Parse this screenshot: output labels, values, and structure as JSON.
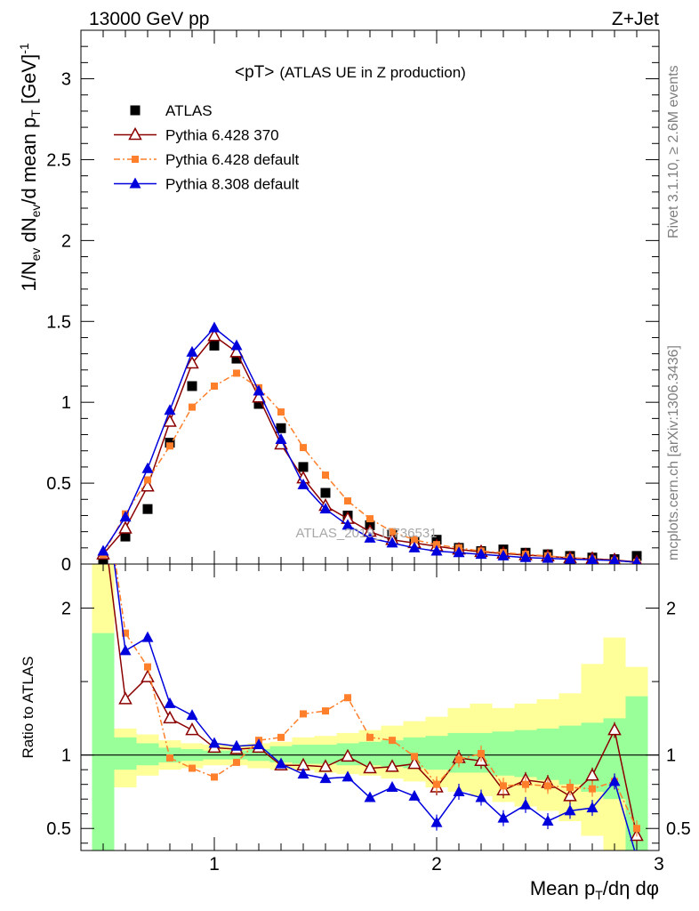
{
  "header": {
    "left": "13000 GeV pp",
    "right": "Z+Jet"
  },
  "side_labels": {
    "rivet": "Rivet 3.1.10, ≥ 2.6M events",
    "mcplots": "mcplots.cern.ch [arXiv:1306.3436]"
  },
  "watermark": "ATLAS_2019_I1736531",
  "colors": {
    "atlas": "#000000",
    "p6_370": "#8b0000",
    "p6_default": "#ff7f2a",
    "p8_default": "#0000dd",
    "band_inner": "#99ff99",
    "band_outer": "#ffff99"
  },
  "chart_data": [
    {
      "type": "line",
      "title_main": "<pT>",
      "title_sub": "(ATLAS UE in Z production)",
      "ylabel": "1/N_ev dN_ev/d mean p_T [GeV]^-1",
      "xlim": [
        0.4,
        3.0
      ],
      "ylim": [
        0,
        3.3
      ],
      "yticks": [
        "0",
        "0.5",
        "1",
        "1.5",
        "2",
        "2.5",
        "3"
      ],
      "x": [
        0.5,
        0.6,
        0.7,
        0.8,
        0.9,
        1.0,
        1.1,
        1.2,
        1.3,
        1.4,
        1.5,
        1.6,
        1.7,
        1.8,
        1.9,
        2.0,
        2.1,
        2.2,
        2.3,
        2.4,
        2.5,
        2.6,
        2.7,
        2.8,
        2.9
      ],
      "series": [
        {
          "name": "ATLAS",
          "style": "data",
          "values": [
            0.02,
            0.17,
            0.34,
            0.75,
            1.1,
            1.35,
            1.27,
            0.99,
            0.84,
            0.6,
            0.44,
            0.3,
            0.24,
            0.18,
            0.14,
            0.15,
            0.1,
            0.08,
            0.09,
            0.07,
            0.06,
            0.05,
            0.04,
            0.03,
            0.05
          ]
        },
        {
          "name": "Pythia 6.428 370",
          "style": "p6_370",
          "values": [
            0.06,
            0.22,
            0.48,
            0.88,
            1.24,
            1.41,
            1.31,
            1.03,
            0.74,
            0.53,
            0.36,
            0.28,
            0.2,
            0.15,
            0.13,
            0.11,
            0.09,
            0.075,
            0.065,
            0.055,
            0.048,
            0.037,
            0.033,
            0.025,
            0.013
          ]
        },
        {
          "name": "Pythia 6.428 default",
          "style": "p6_default",
          "values": [
            0.06,
            0.31,
            0.52,
            0.73,
            0.97,
            1.1,
            1.18,
            1.09,
            0.94,
            0.72,
            0.55,
            0.39,
            0.28,
            0.2,
            0.15,
            0.12,
            0.1,
            0.08,
            0.07,
            0.06,
            0.05,
            0.04,
            0.03,
            0.02,
            0.01
          ]
        },
        {
          "name": "Pythia 8.308 default",
          "style": "p8_default",
          "values": [
            0.08,
            0.29,
            0.59,
            0.95,
            1.31,
            1.46,
            1.35,
            1.07,
            0.77,
            0.49,
            0.34,
            0.24,
            0.16,
            0.13,
            0.1,
            0.08,
            0.07,
            0.06,
            0.05,
            0.04,
            0.035,
            0.03,
            0.026,
            0.022,
            0.01
          ]
        }
      ]
    },
    {
      "type": "line",
      "ylabel": "Ratio to ATLAS",
      "xlabel": "Mean p_T/dη dφ",
      "xlim": [
        0.4,
        3.0
      ],
      "ylim": [
        0.35,
        2.3
      ],
      "yticks": [
        "0.5",
        "1",
        "2"
      ],
      "xticks": [
        "1",
        "2",
        "3"
      ],
      "reference": 1.0,
      "band_x_edges": [
        0.45,
        0.55,
        0.65,
        0.75,
        0.85,
        0.95,
        1.05,
        1.15,
        1.25,
        1.35,
        1.45,
        1.55,
        1.65,
        1.75,
        1.85,
        1.95,
        2.05,
        2.15,
        2.25,
        2.35,
        2.45,
        2.55,
        2.65,
        2.75,
        2.85,
        2.95
      ],
      "band_inner": [
        [
          0.35,
          1.83
        ],
        [
          0.9,
          1.12
        ],
        [
          0.93,
          1.08
        ],
        [
          0.95,
          1.05
        ],
        [
          0.96,
          1.04
        ],
        [
          0.97,
          1.03
        ],
        [
          0.97,
          1.03
        ],
        [
          0.96,
          1.04
        ],
        [
          0.95,
          1.06
        ],
        [
          0.94,
          1.07
        ],
        [
          0.94,
          1.07
        ],
        [
          0.93,
          1.08
        ],
        [
          0.93,
          1.09
        ],
        [
          0.92,
          1.1
        ],
        [
          0.91,
          1.12
        ],
        [
          0.9,
          1.13
        ],
        [
          0.88,
          1.15
        ],
        [
          0.88,
          1.15
        ],
        [
          0.86,
          1.16
        ],
        [
          0.85,
          1.17
        ],
        [
          0.83,
          1.18
        ],
        [
          0.8,
          1.2
        ],
        [
          0.75,
          1.22
        ],
        [
          0.7,
          1.25
        ],
        [
          0.35,
          1.4
        ]
      ],
      "band_outer": [
        [
          0.35,
          2.3
        ],
        [
          0.78,
          1.18
        ],
        [
          0.86,
          1.14
        ],
        [
          0.9,
          1.1
        ],
        [
          0.91,
          1.08
        ],
        [
          0.93,
          1.07
        ],
        [
          0.93,
          1.07
        ],
        [
          0.91,
          1.08
        ],
        [
          0.9,
          1.09
        ],
        [
          0.9,
          1.12
        ],
        [
          0.88,
          1.13
        ],
        [
          0.87,
          1.15
        ],
        [
          0.86,
          1.17
        ],
        [
          0.84,
          1.2
        ],
        [
          0.82,
          1.23
        ],
        [
          0.78,
          1.26
        ],
        [
          0.75,
          1.32
        ],
        [
          0.72,
          1.35
        ],
        [
          0.68,
          1.32
        ],
        [
          0.65,
          1.35
        ],
        [
          0.62,
          1.38
        ],
        [
          0.55,
          1.42
        ],
        [
          0.45,
          1.62
        ],
        [
          0.35,
          1.8
        ],
        [
          0.35,
          1.6
        ]
      ],
      "series": [
        {
          "name": "Pythia 6.428 370",
          "style": "p6_370",
          "values": [
            2.6,
            1.38,
            1.53,
            1.25,
            1.17,
            1.05,
            1.04,
            1.05,
            0.93,
            0.93,
            0.92,
            0.99,
            0.91,
            0.92,
            0.94,
            0.78,
            0.98,
            0.96,
            0.76,
            0.83,
            0.81,
            0.72,
            0.86,
            1.17,
            0.45
          ]
        },
        {
          "name": "Pythia 6.428 default",
          "style": "p6_default",
          "values": [
            2.9,
            1.83,
            1.6,
            0.98,
            0.91,
            0.85,
            0.95,
            1.1,
            1.12,
            1.28,
            1.3,
            1.39,
            1.12,
            1.1,
            0.99,
            0.8,
            0.97,
            1.01,
            0.79,
            0.8,
            0.79,
            0.78,
            0.77,
            0.82,
            0.5
          ]
        },
        {
          "name": "Pythia 8.308 default",
          "style": "p8_default",
          "values": [
            2.9,
            1.71,
            1.8,
            1.35,
            1.27,
            1.08,
            1.06,
            1.07,
            0.94,
            0.87,
            0.84,
            0.85,
            0.71,
            0.78,
            0.72,
            0.54,
            0.75,
            0.71,
            0.57,
            0.66,
            0.55,
            0.62,
            0.64,
            0.82,
            0.3
          ]
        }
      ]
    }
  ]
}
